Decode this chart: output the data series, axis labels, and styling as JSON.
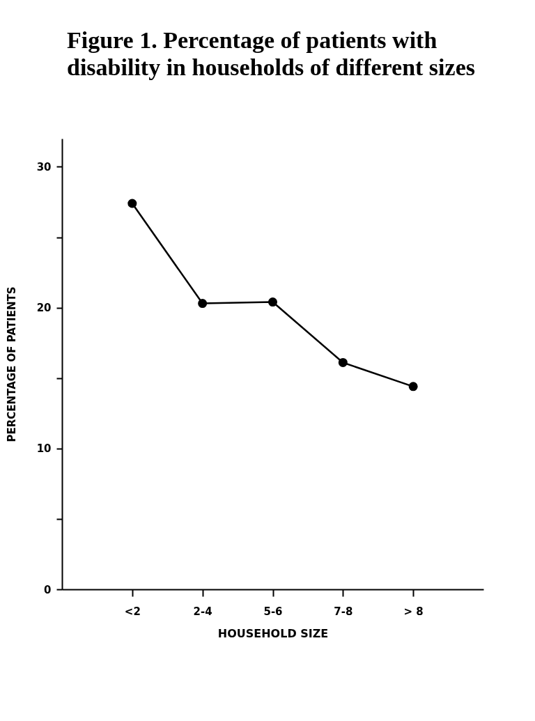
{
  "chart_data": {
    "type": "line",
    "title": "Figure 1. Percentage of patients with disability in households of different sizes",
    "xlabel": "HOUSEHOLD SIZE",
    "ylabel": "PERCENTAGE OF PATIENTS",
    "categories": [
      "<2",
      "2-4",
      "5-6",
      "7-8",
      "> 8"
    ],
    "series": [
      {
        "color": "#000000",
        "values": [
          27.4,
          20.3,
          20.4,
          16.1,
          14.4
        ]
      }
    ],
    "ylim": [
      0,
      32
    ],
    "yticks": [
      0,
      {
        "value": 5,
        "label": null
      },
      10,
      {
        "value": 15,
        "label": null
      },
      20,
      {
        "value": 25,
        "label": null
      },
      30
    ],
    "grid": false,
    "marker": "circle",
    "line_style": "solid"
  }
}
